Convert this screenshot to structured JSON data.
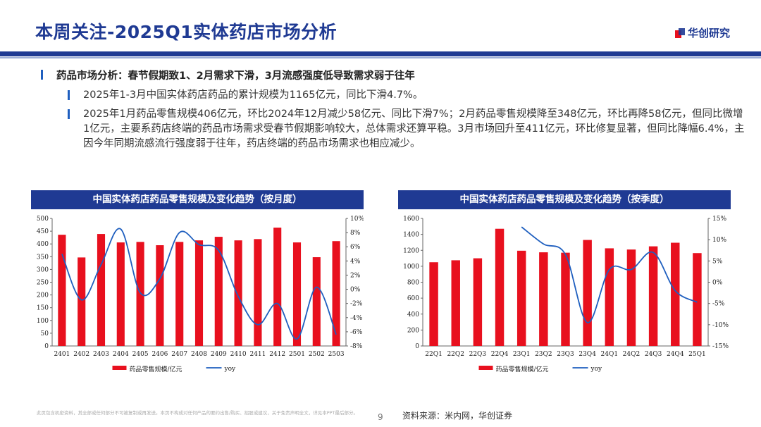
{
  "header": {
    "title": "本周关注-2025Q1实体药店市场分析",
    "logo_text": "华创研究"
  },
  "bullets": {
    "main": "药品市场分析：春节假期致1、2月需求下滑，3月流感强度低导致需求弱于往年",
    "sub1": "2025年1-3月中国实体药店药品的累计规模为1165亿元，同比下滑4.7%。",
    "sub2": "2025年1月药品零售规模406亿元，环比2024年12月减少58亿元、同比下滑7%；2月药品零售规模降至348亿元，环比再降58亿元，但同比微增1亿元，主要系药店终端的药品市场需求受春节假期影响较大，总体需求还算平稳。3月市场回升至411亿元，环比修复显著，但同比降幅6.4%，主因今年同期流感流行强度弱于往年，药店终端的药品市场需求也相应减少。"
  },
  "colors": {
    "bar": "#e8101e",
    "line": "#1f5fbf",
    "brand": "#1f3a93"
  },
  "chart_data": [
    {
      "type": "bar",
      "title": "中国实体药店药品零售规模及变化趋势（按月度）",
      "categories": [
        "2401",
        "2402",
        "2403",
        "2404",
        "2405",
        "2406",
        "2407",
        "2408",
        "2409",
        "2410",
        "2411",
        "2412",
        "2501",
        "2502",
        "2503"
      ],
      "series": [
        {
          "name": "药品零售规模/亿元",
          "type": "bar",
          "axis": "left",
          "values": [
            436,
            347,
            439,
            406,
            408,
            395,
            408,
            414,
            428,
            414,
            419,
            464,
            406,
            348,
            411
          ]
        },
        {
          "name": "yoy",
          "type": "line",
          "axis": "right",
          "values": [
            5.0,
            -1.5,
            3.5,
            8.5,
            -0.5,
            1.5,
            8.0,
            6.3,
            5.5,
            -1.0,
            -5.0,
            -2.0,
            -7.0,
            0.3,
            -6.4
          ]
        }
      ],
      "y_left": {
        "min": 0,
        "max": 500,
        "step": 50,
        "ticks": [
          "0",
          "50",
          "100",
          "150",
          "200",
          "250",
          "300",
          "350",
          "400",
          "450",
          "500"
        ]
      },
      "y_right": {
        "min": -8,
        "max": 10,
        "step": 2,
        "ticks": [
          "-8%",
          "-6%",
          "-4%",
          "-2%",
          "0%",
          "2%",
          "4%",
          "6%",
          "8%",
          "10%"
        ]
      },
      "legend": {
        "bar_label": "药品零售规模/亿元",
        "line_label": "yoy",
        "position": "bottom"
      }
    },
    {
      "type": "bar",
      "title": "中国实体药店药品零售规模及变化趋势（按季度）",
      "categories": [
        "22Q1",
        "22Q2",
        "22Q3",
        "22Q4",
        "23Q1",
        "23Q2",
        "23Q3",
        "23Q4",
        "24Q1",
        "24Q2",
        "24Q3",
        "24Q4",
        "25Q1"
      ],
      "series": [
        {
          "name": "药品零售规模/亿元",
          "type": "bar",
          "axis": "left",
          "values": [
            1050,
            1075,
            1100,
            1470,
            1195,
            1175,
            1170,
            1330,
            1225,
            1210,
            1250,
            1295,
            1165
          ]
        },
        {
          "name": "yoy",
          "type": "line",
          "axis": "right",
          "values": [
            null,
            null,
            null,
            null,
            13.0,
            9.0,
            6.5,
            -9.5,
            3.0,
            3.0,
            7.0,
            -2.0,
            -4.7
          ]
        }
      ],
      "y_left": {
        "min": 0,
        "max": 1600,
        "step": 200,
        "ticks": [
          "0",
          "200",
          "400",
          "600",
          "800",
          "1000",
          "1200",
          "1400",
          "1600"
        ]
      },
      "y_right": {
        "min": -15,
        "max": 15,
        "step": 5,
        "ticks": [
          "-15%",
          "-10%",
          "-5%",
          "0%",
          "5%",
          "10%",
          "15%"
        ]
      },
      "legend": {
        "bar_label": "药品零售规模/亿元",
        "line_label": "yoy",
        "position": "bottom"
      }
    }
  ],
  "footer": {
    "disclaimer": "此页包含机密资料，其全部或任何部分不可被复制或再发送。本页不构成对任何产品的要约出售/购买、招股或建议，关于免责声明全文，详见本PPT最后部分。",
    "page": "9",
    "source": "资料来源：米内网，华创证券"
  }
}
